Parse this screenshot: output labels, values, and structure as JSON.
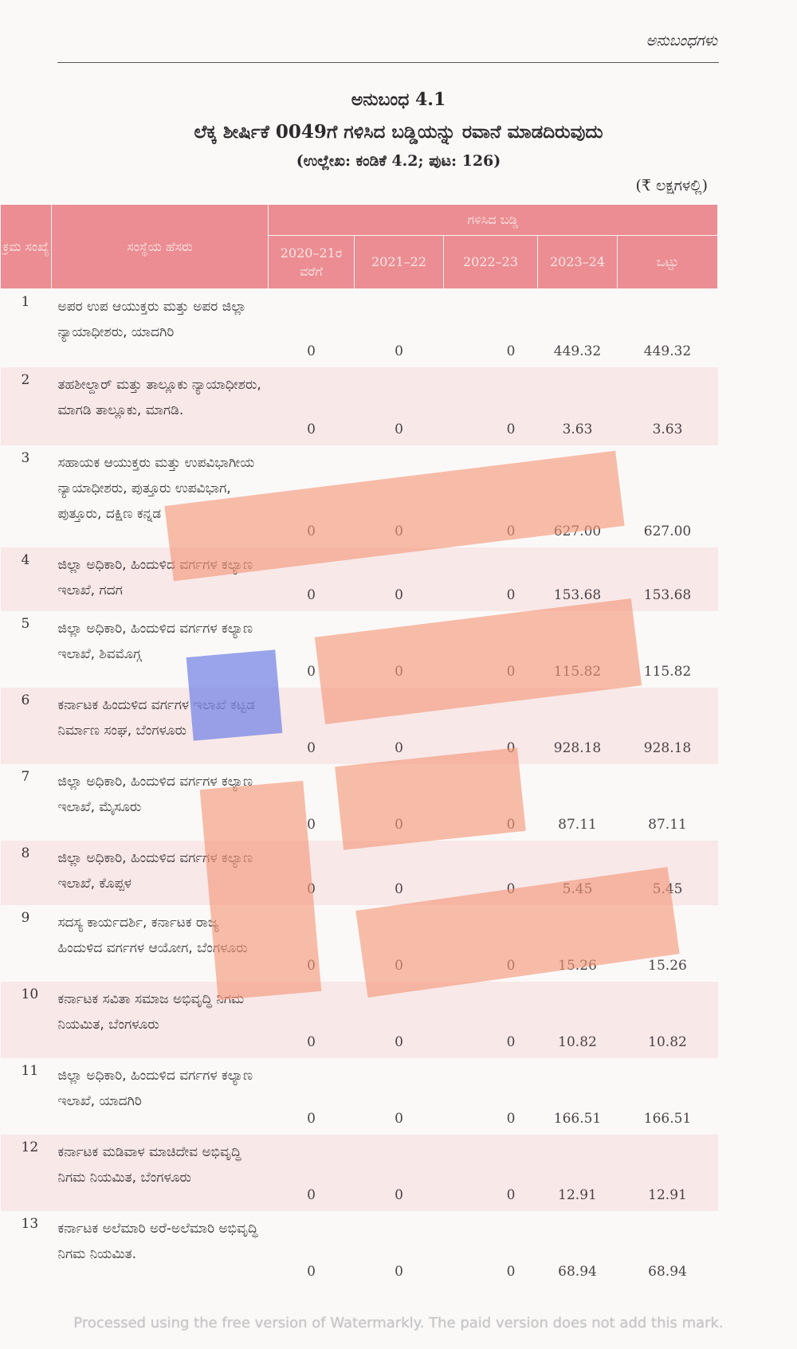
{
  "header": {
    "running_head": "ಅನುಬಂಧಗಳು",
    "annex_no": "ಅನುಬಂಧ 4.1",
    "title": "ಲೆಕ್ಕ ಶೀರ್ಷಿಕೆ 0049ಗೆ ಗಳಿಸಿದ ಬಡ್ಡಿಯನ್ನು ರವಾನೆ ಮಾಡದಿರುವುದು",
    "reference": "(ಉಲ್ಲೇಖ: ಕಂಡಿಕೆ 4.2; ಪುಟ: 126)",
    "unit": "(₹ ಲಕ್ಷಗಳಲ್ಲಿ)"
  },
  "table": {
    "col_no": "ಕ್ರಮ ಸಂಖ್ಯೆ",
    "col_name": "ಸಂಸ್ಥೆಯ ಹೆಸರು",
    "group_header": "ಗಳಿಸಿದ ಬಡ್ಡಿ",
    "col_y1": "2020–21ರ ವರೆಗೆ",
    "col_y2": "2021–22",
    "col_y3": "2022–23",
    "col_y4": "2023–24",
    "col_total": "ಒಟ್ಟು",
    "rows": [
      {
        "no": "1",
        "name": "ಅಪರ ಉಪ ಆಯುಕ್ತರು ಮತ್ತು ಅಪರ ಜಿಲ್ಲಾ ನ್ಯಾಯಾಧೀಶರು, ಯಾದಗಿರಿ",
        "y1": "0",
        "y2": "0",
        "y3": "0",
        "y4": "449.32",
        "total": "449.32"
      },
      {
        "no": "2",
        "name": "ತಹಶೀಲ್ದಾರ್ ಮತ್ತು ತಾಲ್ಲೂಕು ನ್ಯಾಯಾಧೀಶರು, ಮಾಗಡಿ ತಾಲ್ಲೂಕು, ಮಾಗಡಿ.",
        "y1": "0",
        "y2": "0",
        "y3": "0",
        "y4": "3.63",
        "total": "3.63"
      },
      {
        "no": "3",
        "name": "ಸಹಾಯಕ ಆಯುಕ್ತರು ಮತ್ತು ಉಪವಿಭಾಗೀಯ ನ್ಯಾಯಾಧೀಶರು, ಪುತ್ತೂರು ಉಪವಿಭಾಗ, ಪುತ್ತೂರು, ದಕ್ಷಿಣ ಕನ್ನಡ",
        "y1": "0",
        "y2": "0",
        "y3": "0",
        "y4": "627.00",
        "total": "627.00"
      },
      {
        "no": "4",
        "name": "ಜಿಲ್ಲಾ ಅಧಿಕಾರಿ, ಹಿಂದುಳಿದ ವರ್ಗಗಳ ಕಲ್ಯಾಣ ಇಲಾಖೆ, ಗದಗ",
        "y1": "0",
        "y2": "0",
        "y3": "0",
        "y4": "153.68",
        "total": "153.68"
      },
      {
        "no": "5",
        "name": "ಜಿಲ್ಲಾ ಅಧಿಕಾರಿ, ಹಿಂದುಳಿದ ವರ್ಗಗಳ ಕಲ್ಯಾಣ ಇಲಾಖೆ, ಶಿವಮೊಗ್ಗ",
        "y1": "0",
        "y2": "0",
        "y3": "0",
        "y4": "115.82",
        "total": "115.82"
      },
      {
        "no": "6",
        "name": "ಕರ್ನಾಟಕ ಹಿಂದುಳಿದ ವರ್ಗಗಳ ಇಲಾಖೆ ಕಟ್ಟಡ ನಿರ್ಮಾಣ ಸಂಘ, ಬೆಂಗಳೂರು",
        "y1": "0",
        "y2": "0",
        "y3": "0",
        "y4": "928.18",
        "total": "928.18"
      },
      {
        "no": "7",
        "name": "ಜಿಲ್ಲಾ ಅಧಿಕಾರಿ, ಹಿಂದುಳಿದ ವರ್ಗಗಳ ಕಲ್ಯಾಣ ಇಲಾಖೆ, ಮೈಸೂರು",
        "y1": "0",
        "y2": "0",
        "y3": "0",
        "y4": "87.11",
        "total": "87.11"
      },
      {
        "no": "8",
        "name": "ಜಿಲ್ಲಾ ಅಧಿಕಾರಿ, ಹಿಂದುಳಿದ ವರ್ಗಗಳ ಕಲ್ಯಾಣ ಇಲಾಖೆ, ಕೊಪ್ಪಳ",
        "y1": "0",
        "y2": "0",
        "y3": "0",
        "y4": "5.45",
        "total": "5.45"
      },
      {
        "no": "9",
        "name": "ಸದಸ್ಯ ಕಾರ್ಯದರ್ಶಿ, ಕರ್ನಾಟಕ ರಾಜ್ಯ ಹಿಂದುಳಿದ ವರ್ಗಗಳ ಆಯೋಗ, ಬೆಂಗಳೂರು",
        "y1": "0",
        "y2": "0",
        "y3": "0",
        "y4": "15.26",
        "total": "15.26"
      },
      {
        "no": "10",
        "name": "ಕರ್ನಾಟಕ ಸವಿತಾ ಸಮಾಜ ಅಭಿವೃದ್ಧಿ ನಿಗಮ ನಿಯಮಿತ, ಬೆಂಗಳೂರು",
        "y1": "0",
        "y2": "0",
        "y3": "0",
        "y4": "10.82",
        "total": "10.82"
      },
      {
        "no": "11",
        "name": "ಜಿಲ್ಲಾ ಅಧಿಕಾರಿ, ಹಿಂದುಳಿದ ವರ್ಗಗಳ ಕಲ್ಯಾಣ ಇಲಾಖೆ, ಯಾದಗಿರಿ",
        "y1": "0",
        "y2": "0",
        "y3": "0",
        "y4": "166.51",
        "total": "166.51"
      },
      {
        "no": "12",
        "name": "ಕರ್ನಾಟಕ ಮಡಿವಾಳ ಮಾಚಿದೇವ ಅಭಿವೃದ್ಧಿ ನಿಗಮ ನಿಯಮಿತ, ಬೆಂಗಳೂರು",
        "y1": "0",
        "y2": "0",
        "y3": "0",
        "y4": "12.91",
        "total": "12.91"
      },
      {
        "no": "13",
        "name": "ಕರ್ನಾಟಕ ಅಲೆಮಾರಿ ಅರೆ-ಅಲೆಮಾರಿ ಅಭಿವೃದ್ಧಿ ನಿಗಮ ನಿಯಮಿತ.",
        "y1": "0",
        "y2": "0",
        "y3": "0",
        "y4": "68.94",
        "total": "68.94"
      }
    ]
  },
  "watermark": "Processed using the free version of Watermarkly. The paid version does not add this mark."
}
